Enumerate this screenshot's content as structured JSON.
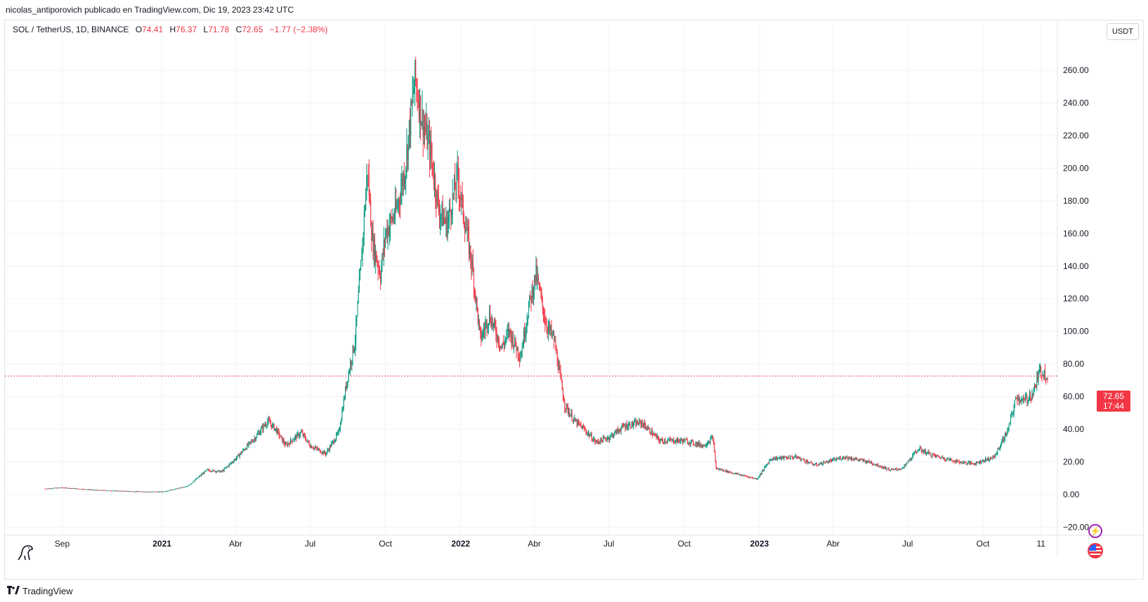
{
  "header": {
    "publisher": "nicolas_antiporovich publicado en TradingView.com, Dic 19, 2023 23:42 UTC"
  },
  "legend": {
    "symbol": "SOL / TetherUS, 1D, BINANCE",
    "open_label": "O",
    "open": "74.41",
    "high_label": "H",
    "high": "76.37",
    "low_label": "L",
    "low": "71.78",
    "close_label": "C",
    "close": "72.65",
    "change": "−1.77 (−2.38%)"
  },
  "currency_button": "USDT",
  "price_badge": {
    "price": "72.65",
    "countdown": "17:44"
  },
  "footer": {
    "brand": "TradingView"
  },
  "icons": {
    "flash": "flash-icon",
    "flag": "us-flag-icon",
    "logo": "tradingview-logo-icon",
    "dino": "dino-icon"
  },
  "colors": {
    "up": "#089981",
    "down": "#f23645",
    "grid": "#f0f3fa",
    "price_line": "#f23645"
  },
  "chart_data": {
    "type": "candlestick",
    "title": "",
    "xlabel": "",
    "ylabel": "",
    "ylim": [
      -25,
      280
    ],
    "grid": true,
    "y_ticks": [
      "260.00",
      "240.00",
      "220.00",
      "200.00",
      "180.00",
      "160.00",
      "140.00",
      "120.00",
      "100.00",
      "80.00",
      "60.00",
      "40.00",
      "20.00",
      "0.00",
      "−20.00"
    ],
    "y_tick_values": [
      260,
      240,
      220,
      200,
      180,
      160,
      140,
      120,
      100,
      80,
      60,
      40,
      20,
      0,
      -20
    ],
    "x_ticks": [
      {
        "label": "Sep",
        "date": "2020-09-01",
        "major": false
      },
      {
        "label": "2021",
        "date": "2021-01-01",
        "major": true
      },
      {
        "label": "Abr",
        "date": "2021-04-01",
        "major": false
      },
      {
        "label": "Jul",
        "date": "2021-07-01",
        "major": false
      },
      {
        "label": "Oct",
        "date": "2021-10-01",
        "major": false
      },
      {
        "label": "2022",
        "date": "2022-01-01",
        "major": true
      },
      {
        "label": "Abr",
        "date": "2022-04-01",
        "major": false
      },
      {
        "label": "Jul",
        "date": "2022-07-01",
        "major": false
      },
      {
        "label": "Oct",
        "date": "2022-10-01",
        "major": false
      },
      {
        "label": "2023",
        "date": "2023-01-01",
        "major": true
      },
      {
        "label": "Abr",
        "date": "2023-04-01",
        "major": false
      },
      {
        "label": "Jul",
        "date": "2023-07-01",
        "major": false
      },
      {
        "label": "Oct",
        "date": "2023-10-01",
        "major": false
      },
      {
        "label": "11",
        "date": "2023-12-11",
        "major": false
      }
    ],
    "x_range": [
      "2020-08-11",
      "2023-12-19"
    ],
    "current_price": 72.65,
    "series": [
      {
        "price_path": [
          [
            "2020-08-11",
            3.5
          ],
          [
            "2020-09-01",
            4.2
          ],
          [
            "2020-10-15",
            2.6
          ],
          [
            "2020-12-01",
            1.8
          ],
          [
            "2021-01-01",
            1.6
          ],
          [
            "2021-02-01",
            5
          ],
          [
            "2021-02-25",
            15
          ],
          [
            "2021-03-15",
            14
          ],
          [
            "2021-04-01",
            22
          ],
          [
            "2021-04-25",
            35
          ],
          [
            "2021-05-10",
            45
          ],
          [
            "2021-05-20",
            40
          ],
          [
            "2021-06-01",
            30
          ],
          [
            "2021-06-20",
            38
          ],
          [
            "2021-07-01",
            30
          ],
          [
            "2021-07-20",
            25
          ],
          [
            "2021-08-05",
            38
          ],
          [
            "2021-08-15",
            70
          ],
          [
            "2021-08-25",
            95
          ],
          [
            "2021-09-01",
            140
          ],
          [
            "2021-09-09",
            200
          ],
          [
            "2021-09-15",
            155
          ],
          [
            "2021-09-25",
            135
          ],
          [
            "2021-10-01",
            160
          ],
          [
            "2021-10-15",
            175
          ],
          [
            "2021-10-25",
            200
          ],
          [
            "2021-11-06",
            255
          ],
          [
            "2021-11-15",
            230
          ],
          [
            "2021-11-25",
            210
          ],
          [
            "2021-12-05",
            175
          ],
          [
            "2021-12-15",
            165
          ],
          [
            "2021-12-28",
            195
          ],
          [
            "2022-01-05",
            170
          ],
          [
            "2022-01-15",
            140
          ],
          [
            "2022-01-25",
            95
          ],
          [
            "2022-02-05",
            110
          ],
          [
            "2022-02-20",
            90
          ],
          [
            "2022-03-01",
            100
          ],
          [
            "2022-03-15",
            85
          ],
          [
            "2022-03-25",
            115
          ],
          [
            "2022-04-03",
            135
          ],
          [
            "2022-04-15",
            105
          ],
          [
            "2022-04-25",
            95
          ],
          [
            "2022-05-08",
            55
          ],
          [
            "2022-05-20",
            45
          ],
          [
            "2022-06-01",
            40
          ],
          [
            "2022-06-15",
            32
          ],
          [
            "2022-07-01",
            35
          ],
          [
            "2022-07-20",
            42
          ],
          [
            "2022-08-10",
            44
          ],
          [
            "2022-09-01",
            33
          ],
          [
            "2022-10-01",
            33
          ],
          [
            "2022-10-25",
            30
          ],
          [
            "2022-11-05",
            35
          ],
          [
            "2022-11-09",
            16
          ],
          [
            "2022-12-01",
            13
          ],
          [
            "2022-12-29",
            9.5
          ],
          [
            "2023-01-15",
            22
          ],
          [
            "2023-02-15",
            23
          ],
          [
            "2023-03-10",
            18
          ],
          [
            "2023-04-15",
            23
          ],
          [
            "2023-05-15",
            20
          ],
          [
            "2023-06-10",
            15
          ],
          [
            "2023-06-25",
            16
          ],
          [
            "2023-07-14",
            28
          ],
          [
            "2023-08-01",
            24
          ],
          [
            "2023-09-01",
            20
          ],
          [
            "2023-09-20",
            19
          ],
          [
            "2023-10-15",
            23
          ],
          [
            "2023-11-01",
            40
          ],
          [
            "2023-11-11",
            60
          ],
          [
            "2023-11-20",
            57
          ],
          [
            "2023-12-01",
            62
          ],
          [
            "2023-12-10",
            76
          ],
          [
            "2023-12-19",
            72.65
          ]
        ]
      }
    ]
  }
}
